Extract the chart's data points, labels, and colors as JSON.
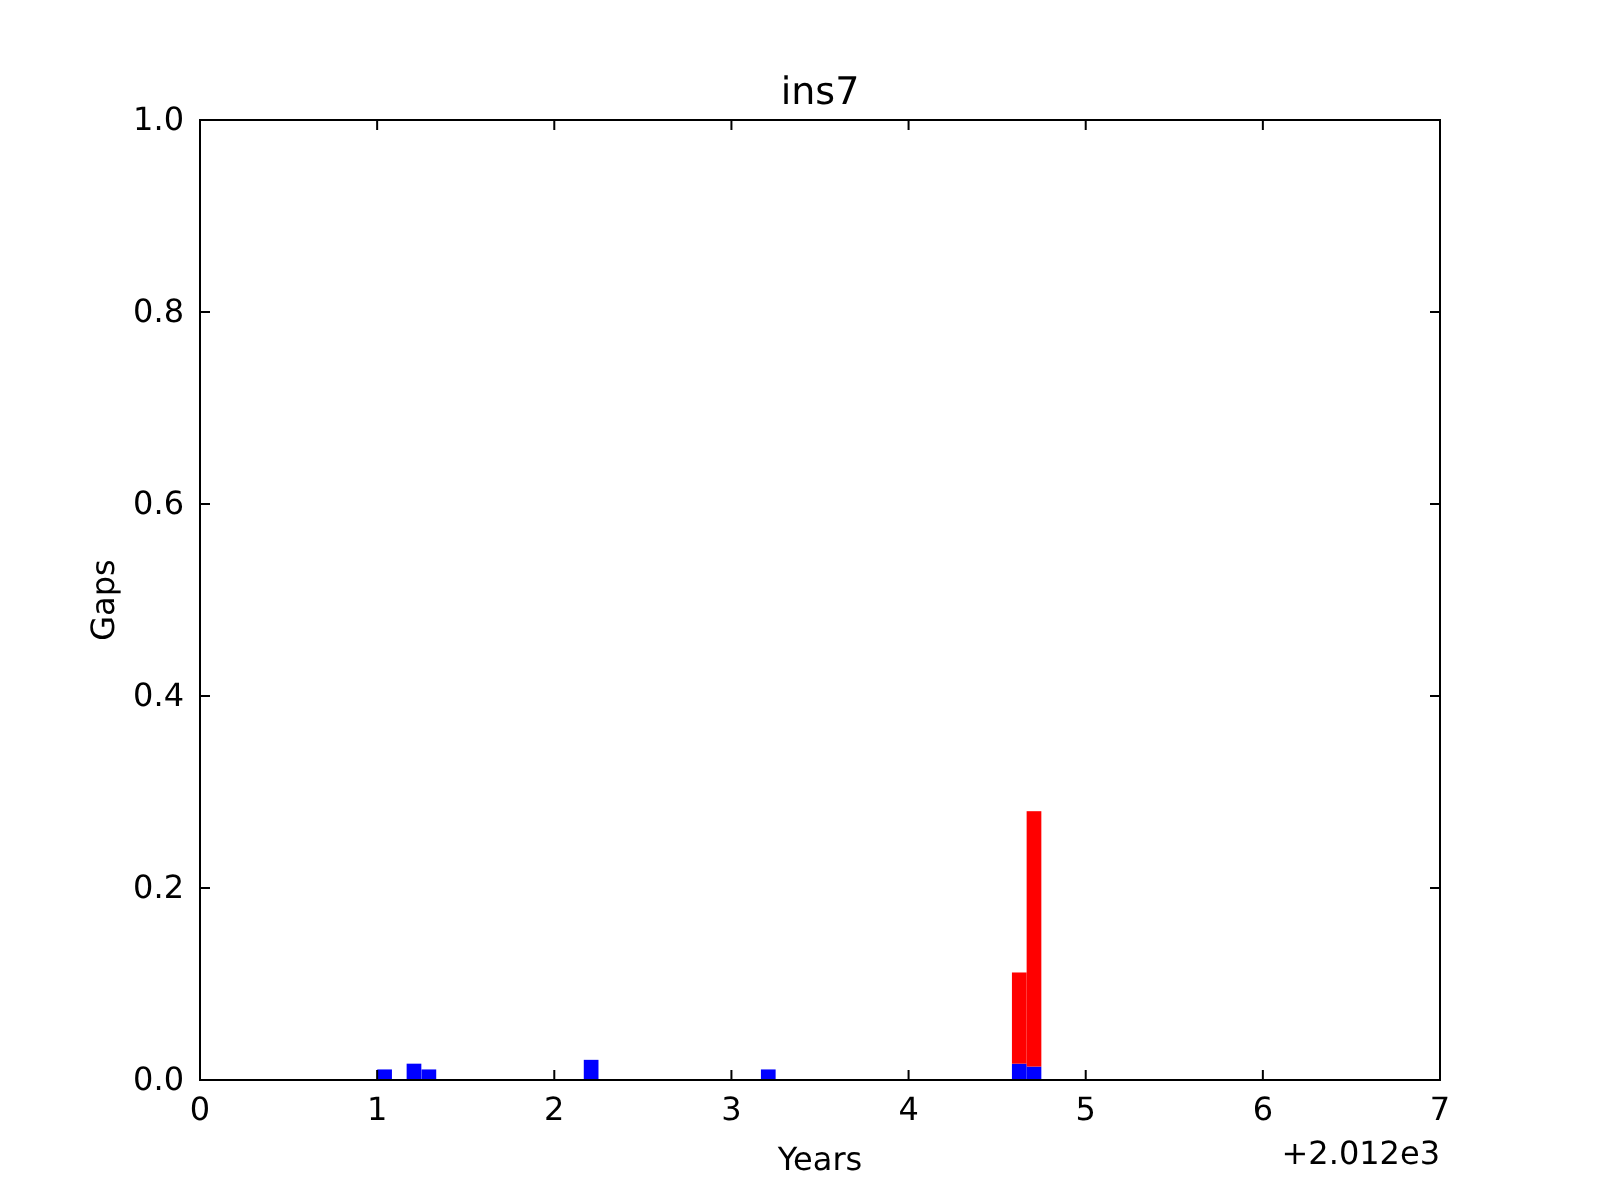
{
  "chart_data": {
    "type": "bar",
    "title": "ins7",
    "xlabel": "Years",
    "ylabel": "Gaps",
    "stacked": true,
    "x": [
      1.042,
      1.208,
      1.292,
      2.208,
      3.208,
      4.625,
      4.708
    ],
    "series": [
      {
        "color": "#0000ff",
        "values": [
          0.011,
          0.017,
          0.011,
          0.021,
          0.011,
          0.017,
          0.014
        ]
      },
      {
        "color": "#ff0000",
        "values": [
          null,
          null,
          null,
          null,
          null,
          0.095,
          0.266
        ]
      }
    ],
    "xlim": [
      0,
      7
    ],
    "xticks": [
      0,
      1,
      2,
      3,
      4,
      5,
      6,
      7
    ],
    "ylim": [
      0,
      1
    ],
    "yticks": [
      {
        "value": 0,
        "label": "0.0"
      },
      {
        "value": 0.2,
        "label": "0.2"
      },
      {
        "value": 0.4,
        "label": "0.4"
      },
      {
        "value": 0.6,
        "label": "0.6"
      },
      {
        "value": 0.8,
        "label": "0.8"
      },
      {
        "value": 1,
        "label": "1.0"
      }
    ],
    "annotations": [
      "+2.012e3"
    ]
  }
}
